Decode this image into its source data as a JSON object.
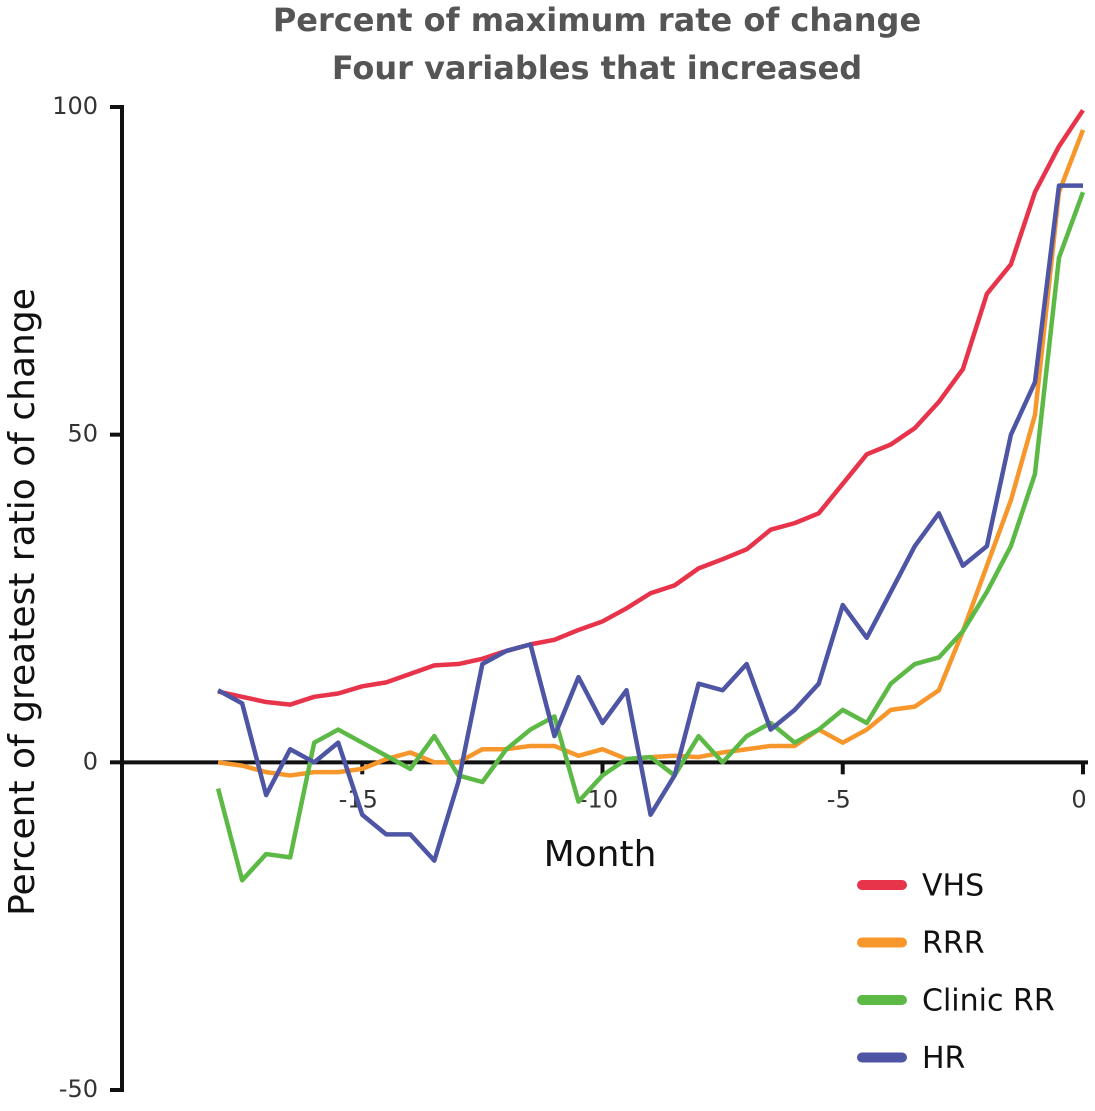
{
  "chart_data": {
    "type": "line",
    "title": "Percent of maximum rate of change",
    "subtitle": "Four variables that increased",
    "xlabel": "Month",
    "ylabel": "Percent of greatest ratio of change",
    "xlim": [
      -20,
      0
    ],
    "xticks": [
      -15,
      -10,
      -5,
      0
    ],
    "ylim": [
      -50,
      100
    ],
    "yticks": [
      -50,
      0,
      50,
      100
    ],
    "x": [
      -18,
      -17.5,
      -17,
      -16.5,
      -16,
      -15.5,
      -15,
      -14.5,
      -14,
      -13.5,
      -13,
      -12.5,
      -12,
      -11.5,
      -11,
      -10.5,
      -10,
      -9.5,
      -9,
      -8.5,
      -8,
      -7.5,
      -7,
      -6.5,
      -6,
      -5.5,
      -5,
      -4.5,
      -4,
      -3.5,
      -3,
      -2.5,
      -2,
      -1.5,
      -1,
      -0.5,
      0
    ],
    "series": [
      {
        "name": "VHS",
        "color": "#e8344b",
        "values": [
          10.8,
          10,
          9.2,
          8.8,
          10,
          10.5,
          11.6,
          12.2,
          13.5,
          14.8,
          15,
          15.8,
          17,
          18,
          18.7,
          20.2,
          21.5,
          23.5,
          25.8,
          27,
          29.6,
          31,
          32.5,
          35.5,
          36.5,
          38,
          42.5,
          47,
          48.5,
          51,
          55,
          60,
          71.5,
          76,
          87,
          94,
          99.5
        ]
      },
      {
        "name": "RRR",
        "color": "#f7962b",
        "values": [
          0,
          -0.5,
          -1.5,
          -2,
          -1.5,
          -1.5,
          -1,
          0.5,
          1.5,
          0,
          0,
          2,
          2,
          2.5,
          2.5,
          1,
          2,
          0.5,
          0.8,
          1,
          0.8,
          1.5,
          2,
          2.5,
          2.5,
          5,
          3,
          5,
          8,
          8.5,
          11,
          20,
          30,
          40,
          53,
          87,
          96.5
        ]
      },
      {
        "name": "Clinic RR",
        "color": "#5cb946",
        "values": [
          -4,
          -18,
          -14,
          -14.5,
          3,
          5,
          3,
          1,
          -1,
          4,
          -2,
          -3,
          2,
          5,
          7,
          -6,
          -2,
          0.5,
          0.8,
          -2,
          4,
          0,
          4,
          6,
          3,
          5,
          8,
          6,
          12,
          15,
          16,
          20,
          26,
          33,
          44,
          77,
          87
        ]
      },
      {
        "name": "HR",
        "color": "#4e55a4",
        "values": [
          11,
          9,
          -5,
          2,
          0,
          3,
          -8,
          -11,
          -11,
          -15,
          -3,
          15,
          17,
          18,
          4,
          13,
          6,
          11,
          -8,
          -2,
          12,
          11,
          15,
          5,
          8,
          12,
          24,
          19,
          26,
          33,
          38,
          30,
          33,
          50,
          58,
          88,
          88
        ]
      }
    ]
  }
}
